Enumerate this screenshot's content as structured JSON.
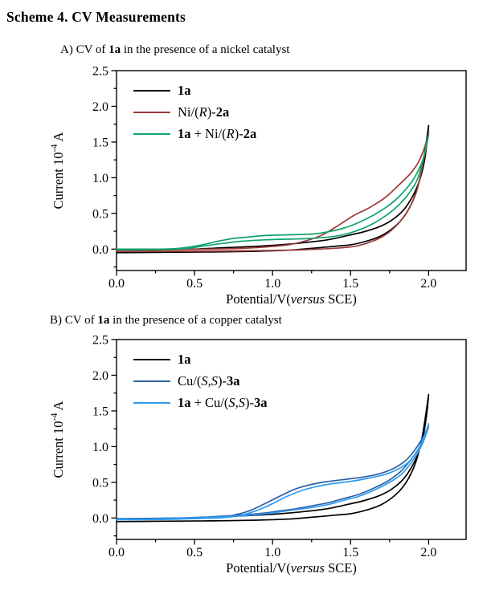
{
  "title": "Scheme 4. CV Measurements",
  "colors": {
    "black": "#000000",
    "nickel_red": "#9e3939",
    "nickel_green": "#0fa36d",
    "copper_dark_blue": "#2e5fa3",
    "copper_light_blue": "#2e9bf0",
    "frame": "#000000"
  },
  "chart_data": [
    {
      "id": "A",
      "type": "line",
      "caption": [
        {
          "t": "A) CV of "
        },
        {
          "t": "1a",
          "b": true
        },
        {
          "t": " in the presence of a nickel catalyst"
        }
      ],
      "xlabel": [
        {
          "t": "Potential/V("
        },
        {
          "t": "versus",
          "i": true
        },
        {
          "t": " SCE)"
        }
      ],
      "ylabel": [
        {
          "t": "Current 10"
        },
        {
          "t": "-4",
          "sup": true
        },
        {
          "t": " A"
        }
      ],
      "xlim": [
        0,
        2.24
      ],
      "ylim": [
        -0.3,
        2.5
      ],
      "x_ticks": {
        "values": [
          0,
          0.5,
          1.0,
          1.5,
          2.0
        ],
        "labels": [
          "0.0",
          "0.5",
          "1.0",
          "1.5",
          "2.0"
        ],
        "minor_step": 0.25
      },
      "y_ticks": {
        "values": [
          0,
          0.5,
          1.0,
          1.5,
          2.0,
          2.5
        ],
        "labels": [
          "0.0",
          "0.5",
          "1.0",
          "1.5",
          "2.0",
          "2.5"
        ],
        "minor_step": 0.25
      },
      "grid": false,
      "legend_position": "top-left",
      "legend": [
        {
          "color": "#000000",
          "label": [
            {
              "t": "1a",
              "b": true
            }
          ]
        },
        {
          "color": "#9e3939",
          "label": [
            {
              "t": "Ni/("
            },
            {
              "t": "R",
              "i": true
            },
            {
              "t": ")-"
            },
            {
              "t": "2a",
              "b": true
            }
          ]
        },
        {
          "color": "#0fa36d",
          "label": [
            {
              "t": "1a",
              "b": true
            },
            {
              "t": " + Ni/("
            },
            {
              "t": "R",
              "i": true
            },
            {
              "t": ")-"
            },
            {
              "t": "2a",
              "b": true
            }
          ]
        }
      ],
      "series": [
        {
          "name": "1a",
          "color": "#000000",
          "points": [
            [
              0,
              -0.05
            ],
            [
              0.3,
              -0.045
            ],
            [
              0.6,
              -0.04
            ],
            [
              0.9,
              -0.03
            ],
            [
              1.1,
              -0.015
            ],
            [
              1.25,
              0.01
            ],
            [
              1.4,
              0.04
            ],
            [
              1.5,
              0.06
            ],
            [
              1.6,
              0.11
            ],
            [
              1.7,
              0.19
            ],
            [
              1.8,
              0.35
            ],
            [
              1.87,
              0.55
            ],
            [
              1.92,
              0.8
            ],
            [
              1.96,
              1.15
            ],
            [
              2.0,
              1.73
            ],
            [
              1.99,
              1.5
            ],
            [
              1.97,
              1.2
            ],
            [
              1.94,
              0.95
            ],
            [
              1.9,
              0.75
            ],
            [
              1.84,
              0.55
            ],
            [
              1.76,
              0.4
            ],
            [
              1.68,
              0.31
            ],
            [
              1.58,
              0.24
            ],
            [
              1.48,
              0.19
            ],
            [
              1.35,
              0.13
            ],
            [
              1.2,
              0.09
            ],
            [
              1.05,
              0.06
            ],
            [
              0.9,
              0.04
            ],
            [
              0.7,
              0.02
            ],
            [
              0.5,
              0.0
            ],
            [
              0.3,
              -0.01
            ],
            [
              0,
              -0.02
            ]
          ]
        },
        {
          "name": "Ni/(R)-2a",
          "color": "#9e3939",
          "points": [
            [
              0,
              -0.03
            ],
            [
              0.4,
              -0.03
            ],
            [
              0.8,
              -0.025
            ],
            [
              1.1,
              -0.015
            ],
            [
              1.3,
              0.0
            ],
            [
              1.5,
              0.03
            ],
            [
              1.6,
              0.08
            ],
            [
              1.7,
              0.17
            ],
            [
              1.78,
              0.3
            ],
            [
              1.85,
              0.48
            ],
            [
              1.9,
              0.68
            ],
            [
              1.94,
              0.95
            ],
            [
              2.0,
              1.62
            ],
            [
              1.97,
              1.4
            ],
            [
              1.93,
              1.2
            ],
            [
              1.88,
              1.05
            ],
            [
              1.8,
              0.88
            ],
            [
              1.72,
              0.72
            ],
            [
              1.62,
              0.58
            ],
            [
              1.52,
              0.47
            ],
            [
              1.42,
              0.33
            ],
            [
              1.32,
              0.2
            ],
            [
              1.22,
              0.12
            ],
            [
              1.1,
              0.06
            ],
            [
              0.95,
              0.03
            ],
            [
              0.8,
              0.01
            ],
            [
              0.6,
              0.0
            ],
            [
              0.4,
              -0.005
            ],
            [
              0.2,
              -0.015
            ],
            [
              0,
              -0.02
            ]
          ]
        },
        {
          "name": "1a + Ni/(R)-2a",
          "color": "#0fa36d",
          "points": [
            [
              0,
              -0.01
            ],
            [
              0.3,
              -0.005
            ],
            [
              0.45,
              0.01
            ],
            [
              0.55,
              0.04
            ],
            [
              0.68,
              0.08
            ],
            [
              0.8,
              0.11
            ],
            [
              0.95,
              0.13
            ],
            [
              1.1,
              0.14
            ],
            [
              1.25,
              0.15
            ],
            [
              1.4,
              0.18
            ],
            [
              1.5,
              0.23
            ],
            [
              1.6,
              0.31
            ],
            [
              1.7,
              0.43
            ],
            [
              1.8,
              0.6
            ],
            [
              1.88,
              0.8
            ],
            [
              1.94,
              1.05
            ],
            [
              2.0,
              1.6
            ],
            [
              1.98,
              1.38
            ],
            [
              1.95,
              1.18
            ],
            [
              1.9,
              0.97
            ],
            [
              1.83,
              0.78
            ],
            [
              1.75,
              0.62
            ],
            [
              1.65,
              0.48
            ],
            [
              1.55,
              0.37
            ],
            [
              1.45,
              0.29
            ],
            [
              1.35,
              0.24
            ],
            [
              1.25,
              0.21
            ],
            [
              1.1,
              0.2
            ],
            [
              0.95,
              0.19
            ],
            [
              0.85,
              0.17
            ],
            [
              0.75,
              0.15
            ],
            [
              0.65,
              0.11
            ],
            [
              0.55,
              0.06
            ],
            [
              0.47,
              0.03
            ],
            [
              0.4,
              0.01
            ],
            [
              0.3,
              0.0
            ],
            [
              0.15,
              0.0
            ],
            [
              0,
              0.0
            ]
          ]
        }
      ]
    },
    {
      "id": "B",
      "type": "line",
      "caption": [
        {
          "t": "B) CV of "
        },
        {
          "t": "1a",
          "b": true
        },
        {
          "t": " in the presence of a copper catalyst"
        }
      ],
      "xlabel": [
        {
          "t": "Potential/V("
        },
        {
          "t": "versus",
          "i": true
        },
        {
          "t": " SCE)"
        }
      ],
      "ylabel": [
        {
          "t": "Current 10"
        },
        {
          "t": "-4",
          "sup": true
        },
        {
          "t": " A"
        }
      ],
      "xlim": [
        0,
        2.24
      ],
      "ylim": [
        -0.3,
        2.5
      ],
      "x_ticks": {
        "values": [
          0,
          0.5,
          1.0,
          1.5,
          2.0
        ],
        "labels": [
          "0.0",
          "0.5",
          "1.0",
          "1.5",
          "2.0"
        ],
        "minor_step": 0.25
      },
      "y_ticks": {
        "values": [
          0,
          0.5,
          1.0,
          1.5,
          2.0,
          2.5
        ],
        "labels": [
          "0.0",
          "0.5",
          "1.0",
          "1.5",
          "2.0",
          "2.5"
        ],
        "minor_step": 0.25
      },
      "grid": false,
      "legend_position": "top-left",
      "legend": [
        {
          "color": "#000000",
          "label": [
            {
              "t": "1a",
              "b": true
            }
          ]
        },
        {
          "color": "#2e5fa3",
          "label": [
            {
              "t": "Cu/("
            },
            {
              "t": "S",
              "i": true
            },
            {
              "t": ","
            },
            {
              "t": "S",
              "i": true
            },
            {
              "t": ")-"
            },
            {
              "t": "3a",
              "b": true
            }
          ]
        },
        {
          "color": "#2e9bf0",
          "label": [
            {
              "t": "1a",
              "b": true
            },
            {
              "t": " + Cu/("
            },
            {
              "t": "S",
              "i": true
            },
            {
              "t": ","
            },
            {
              "t": "S",
              "i": true
            },
            {
              "t": ")-"
            },
            {
              "t": "3a",
              "b": true
            }
          ]
        }
      ],
      "series": [
        {
          "name": "1a",
          "color": "#000000",
          "points": [
            [
              0,
              -0.05
            ],
            [
              0.3,
              -0.045
            ],
            [
              0.6,
              -0.04
            ],
            [
              0.9,
              -0.03
            ],
            [
              1.1,
              -0.015
            ],
            [
              1.25,
              0.01
            ],
            [
              1.4,
              0.04
            ],
            [
              1.5,
              0.06
            ],
            [
              1.6,
              0.11
            ],
            [
              1.7,
              0.19
            ],
            [
              1.8,
              0.35
            ],
            [
              1.87,
              0.55
            ],
            [
              1.92,
              0.8
            ],
            [
              1.96,
              1.15
            ],
            [
              2.0,
              1.73
            ],
            [
              1.99,
              1.5
            ],
            [
              1.97,
              1.2
            ],
            [
              1.94,
              0.95
            ],
            [
              1.9,
              0.75
            ],
            [
              1.84,
              0.55
            ],
            [
              1.76,
              0.4
            ],
            [
              1.68,
              0.31
            ],
            [
              1.58,
              0.24
            ],
            [
              1.48,
              0.19
            ],
            [
              1.35,
              0.13
            ],
            [
              1.2,
              0.09
            ],
            [
              1.05,
              0.06
            ],
            [
              0.9,
              0.04
            ],
            [
              0.7,
              0.02
            ],
            [
              0.5,
              0.0
            ],
            [
              0.3,
              -0.01
            ],
            [
              0,
              -0.02
            ]
          ]
        },
        {
          "name": "Cu/(S,S)-3a",
          "color": "#2e5fa3",
          "points": [
            [
              0,
              -0.02
            ],
            [
              0.3,
              -0.015
            ],
            [
              0.5,
              -0.005
            ],
            [
              0.65,
              0.01
            ],
            [
              0.75,
              0.04
            ],
            [
              0.85,
              0.1
            ],
            [
              0.95,
              0.2
            ],
            [
              1.05,
              0.31
            ],
            [
              1.15,
              0.41
            ],
            [
              1.25,
              0.47
            ],
            [
              1.35,
              0.51
            ],
            [
              1.5,
              0.55
            ],
            [
              1.6,
              0.58
            ],
            [
              1.7,
              0.63
            ],
            [
              1.78,
              0.7
            ],
            [
              1.85,
              0.8
            ],
            [
              1.9,
              0.92
            ],
            [
              1.95,
              1.08
            ],
            [
              2.0,
              1.28
            ],
            [
              1.97,
              1.1
            ],
            [
              1.93,
              0.95
            ],
            [
              1.88,
              0.8
            ],
            [
              1.82,
              0.65
            ],
            [
              1.74,
              0.52
            ],
            [
              1.65,
              0.42
            ],
            [
              1.55,
              0.33
            ],
            [
              1.45,
              0.27
            ],
            [
              1.35,
              0.21
            ],
            [
              1.25,
              0.17
            ],
            [
              1.15,
              0.13
            ],
            [
              1.05,
              0.1
            ],
            [
              0.95,
              0.07
            ],
            [
              0.85,
              0.05
            ],
            [
              0.7,
              0.03
            ],
            [
              0.55,
              0.01
            ],
            [
              0.4,
              0.0
            ],
            [
              0.2,
              -0.005
            ],
            [
              0,
              -0.01
            ]
          ]
        },
        {
          "name": "1a + Cu/(S,S)-3a",
          "color": "#2e9bf0",
          "points": [
            [
              0,
              -0.025
            ],
            [
              0.3,
              -0.02
            ],
            [
              0.5,
              -0.01
            ],
            [
              0.68,
              0.005
            ],
            [
              0.78,
              0.03
            ],
            [
              0.88,
              0.09
            ],
            [
              0.98,
              0.18
            ],
            [
              1.08,
              0.29
            ],
            [
              1.18,
              0.38
            ],
            [
              1.28,
              0.44
            ],
            [
              1.38,
              0.48
            ],
            [
              1.52,
              0.52
            ],
            [
              1.62,
              0.56
            ],
            [
              1.72,
              0.61
            ],
            [
              1.8,
              0.68
            ],
            [
              1.87,
              0.78
            ],
            [
              1.92,
              0.92
            ],
            [
              1.96,
              1.08
            ],
            [
              2.0,
              1.32
            ],
            [
              1.975,
              1.12
            ],
            [
              1.94,
              0.95
            ],
            [
              1.89,
              0.78
            ],
            [
              1.83,
              0.62
            ],
            [
              1.75,
              0.5
            ],
            [
              1.66,
              0.4
            ],
            [
              1.56,
              0.31
            ],
            [
              1.46,
              0.25
            ],
            [
              1.36,
              0.19
            ],
            [
              1.26,
              0.15
            ],
            [
              1.16,
              0.12
            ],
            [
              1.06,
              0.09
            ],
            [
              0.96,
              0.06
            ],
            [
              0.86,
              0.04
            ],
            [
              0.7,
              0.02
            ],
            [
              0.55,
              0.005
            ],
            [
              0.4,
              -0.005
            ],
            [
              0.2,
              -0.015
            ],
            [
              0,
              -0.02
            ]
          ]
        }
      ]
    }
  ]
}
